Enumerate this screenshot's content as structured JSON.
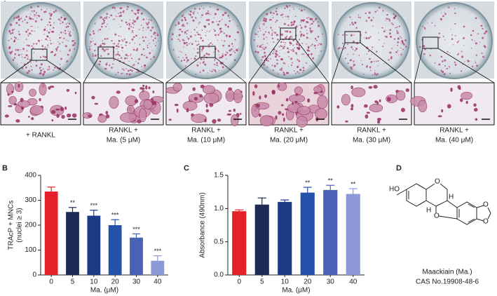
{
  "panel_labels": [
    "A",
    "B",
    "C",
    "D"
  ],
  "conditions": [
    [
      "+ RANKL"
    ],
    [
      "RANKL +",
      "Ma. (5 μM)"
    ],
    [
      "RANKL +",
      "Ma. (10 μM)"
    ],
    [
      "RANKL +",
      "Ma. (20 μM)"
    ],
    [
      "RANKL +",
      "Ma. (30 μM)"
    ],
    [
      "RANKL +",
      "Ma. (40 μM)"
    ]
  ],
  "chart_data": [
    {
      "type": "bar",
      "ylabel": [
        "TRAcP + MNCs",
        "(nuclei ≥ 3)"
      ],
      "xlabel": "Ma. (μM)",
      "categories": [
        "0",
        "5",
        "10",
        "20",
        "30",
        "40"
      ],
      "values": [
        335,
        253,
        238,
        200,
        150,
        57
      ],
      "errors": [
        18,
        18,
        22,
        22,
        15,
        20
      ],
      "significance": [
        null,
        "**",
        "***",
        "***",
        "***",
        "***"
      ],
      "colors": [
        "#e5202a",
        "#1e2b55",
        "#1c3b86",
        "#2452ab",
        "#4a62b5",
        "#8d98d6"
      ],
      "ylim": [
        0,
        400
      ],
      "yticks": [
        0,
        100,
        200,
        300,
        400
      ]
    },
    {
      "type": "bar",
      "ylabel": [
        "Absorbance (490nm)"
      ],
      "xlabel": "Ma. (μM)",
      "categories": [
        "0",
        "5",
        "10",
        "20",
        "30",
        "40"
      ],
      "values": [
        0.96,
        1.06,
        1.1,
        1.24,
        1.28,
        1.22
      ],
      "errors": [
        0.02,
        0.1,
        0.03,
        0.08,
        0.07,
        0.08
      ],
      "significance": [
        null,
        null,
        null,
        "**",
        "**",
        "**"
      ],
      "colors": [
        "#e5202a",
        "#1e2b55",
        "#1c3b86",
        "#2452ab",
        "#4a62b5",
        "#8d98d6"
      ],
      "ylim": [
        0,
        1.5
      ],
      "yticks": [
        {
          "value": 0,
          "label": "0.0"
        },
        0.5,
        {
          "value": 1,
          "label": "1.0"
        },
        1.5
      ]
    }
  ],
  "compound": {
    "atoms": [
      "HO",
      "O",
      "H",
      "H",
      "O",
      "O",
      "O"
    ],
    "name": "Maackiain (Ma.)",
    "cas": "CAS No.19908-48-6"
  }
}
